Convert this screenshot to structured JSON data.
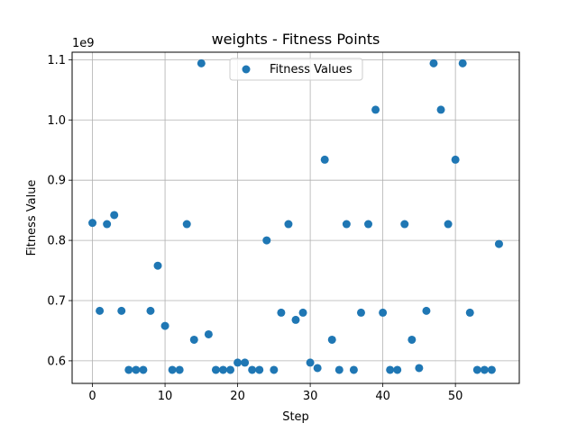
{
  "chart_data": {
    "type": "scatter",
    "title": "weights - Fitness Points",
    "xlabel": "Step",
    "ylabel": "Fitness Value",
    "y_offset_label": "1e9",
    "grid": true,
    "legend_position": "upper-center",
    "colors": {
      "series": "#1f77b4",
      "grid": "#b0b0b0",
      "axis": "#000000"
    },
    "xlim": [
      -2.8,
      58.8
    ],
    "ylim": [
      0.5625,
      1.1125
    ],
    "xticks": [
      0,
      10,
      20,
      30,
      40,
      50
    ],
    "xtick_labels": [
      "0",
      "10",
      "20",
      "30",
      "40",
      "50"
    ],
    "yticks": [
      0.6,
      0.7,
      0.8,
      0.9,
      1.0,
      1.1
    ],
    "ytick_labels": [
      "0.6",
      "0.7",
      "0.8",
      "0.9",
      "1.0",
      "1.1"
    ],
    "series": [
      {
        "name": "Fitness Values",
        "x": [
          0,
          1,
          2,
          3,
          4,
          5,
          6,
          7,
          8,
          9,
          10,
          11,
          12,
          13,
          14,
          15,
          16,
          17,
          18,
          19,
          20,
          21,
          22,
          23,
          24,
          25,
          26,
          27,
          28,
          29,
          30,
          31,
          32,
          33,
          34,
          35,
          36,
          37,
          38,
          39,
          40,
          41,
          42,
          43,
          44,
          45,
          46,
          47,
          48,
          49,
          50,
          51,
          52,
          53,
          54,
          55,
          56
        ],
        "y": [
          0.829,
          0.683,
          0.827,
          0.842,
          0.683,
          0.585,
          0.585,
          0.585,
          0.683,
          0.758,
          0.658,
          0.585,
          0.585,
          0.827,
          0.635,
          1.094,
          0.644,
          0.585,
          0.585,
          0.585,
          0.597,
          0.597,
          0.585,
          0.585,
          0.8,
          0.585,
          0.68,
          0.827,
          0.668,
          0.68,
          0.597,
          0.588,
          0.934,
          0.635,
          0.585,
          0.827,
          0.585,
          0.68,
          0.827,
          1.017,
          0.68,
          0.585,
          0.585,
          0.827,
          0.635,
          0.588,
          0.683,
          1.094,
          1.017,
          0.827,
          0.934,
          1.094,
          0.68,
          0.585,
          0.585,
          0.585,
          0.794
        ]
      }
    ]
  }
}
